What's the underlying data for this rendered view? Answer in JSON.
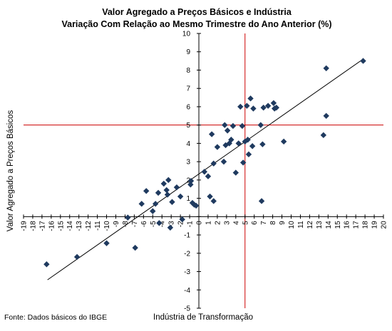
{
  "chart_data": {
    "type": "scatter",
    "title": "Valor Agregado a Preços Básicos e Indústria",
    "subtitle": "Variação Com Relação ao Mesmo Trimestre do Ano Anterior (%)",
    "xlabel": "Indústria de Transformação",
    "ylabel": "Valor Agregado a Preços Básicos",
    "xlim": [
      -19,
      20
    ],
    "ylim": [
      -5,
      10
    ],
    "x_ticks": [
      -19,
      -18,
      -17,
      -16,
      -15,
      -14,
      -13,
      -12,
      -11,
      -10,
      -9,
      -8,
      -7,
      -6,
      -5,
      -4,
      -3,
      -2,
      -1,
      0,
      1,
      2,
      3,
      4,
      5,
      6,
      7,
      8,
      9,
      10,
      11,
      12,
      13,
      14,
      15,
      16,
      17,
      18,
      19,
      20
    ],
    "y_ticks": [
      -5,
      -4,
      -3,
      -2,
      -1,
      0,
      1,
      2,
      3,
      4,
      5,
      6,
      7,
      8,
      9,
      10
    ],
    "grid": false,
    "legend": "none",
    "marker_color": "#1f3a5f",
    "trendline": {
      "x": [
        -16.4,
        17.8
      ],
      "y": [
        -3.45,
        8.6
      ],
      "color": "#000000"
    },
    "reference_lines": {
      "x": 5,
      "y": 5,
      "color": "#cc0000"
    },
    "points": [
      {
        "x": -16.5,
        "y": -2.6
      },
      {
        "x": -13.2,
        "y": -2.2
      },
      {
        "x": -10.0,
        "y": -1.45
      },
      {
        "x": -6.9,
        "y": -1.7
      },
      {
        "x": -7.7,
        "y": -0.05
      },
      {
        "x": -6.2,
        "y": 0.7
      },
      {
        "x": -5.7,
        "y": 1.4
      },
      {
        "x": -5.0,
        "y": 0.3
      },
      {
        "x": -4.7,
        "y": 0.7
      },
      {
        "x": -4.4,
        "y": 1.3
      },
      {
        "x": -4.3,
        "y": -0.35
      },
      {
        "x": -3.8,
        "y": 1.8
      },
      {
        "x": -3.5,
        "y": 1.45
      },
      {
        "x": -3.4,
        "y": 1.2
      },
      {
        "x": -3.3,
        "y": 2.0
      },
      {
        "x": -3.1,
        "y": -0.6
      },
      {
        "x": -2.9,
        "y": 0.8
      },
      {
        "x": -2.4,
        "y": 1.6
      },
      {
        "x": -2.0,
        "y": 1.1
      },
      {
        "x": -1.8,
        "y": -0.15
      },
      {
        "x": -0.9,
        "y": 1.75
      },
      {
        "x": -0.85,
        "y": 1.95
      },
      {
        "x": -0.7,
        "y": 0.75
      },
      {
        "x": -0.5,
        "y": 0.65
      },
      {
        "x": -0.3,
        "y": 0.6
      },
      {
        "x": 0.6,
        "y": 2.45
      },
      {
        "x": 1.0,
        "y": 2.2
      },
      {
        "x": 1.2,
        "y": 1.1
      },
      {
        "x": 1.4,
        "y": 4.5
      },
      {
        "x": 1.6,
        "y": 0.85
      },
      {
        "x": 1.6,
        "y": 2.9
      },
      {
        "x": 2.0,
        "y": 3.8
      },
      {
        "x": 2.7,
        "y": 3.0
      },
      {
        "x": 2.8,
        "y": 5.0
      },
      {
        "x": 2.9,
        "y": 3.9
      },
      {
        "x": 3.1,
        "y": 4.7
      },
      {
        "x": 3.3,
        "y": 4.0
      },
      {
        "x": 3.5,
        "y": 4.2
      },
      {
        "x": 3.7,
        "y": 4.95
      },
      {
        "x": 4.0,
        "y": 2.4
      },
      {
        "x": 4.3,
        "y": 4.0
      },
      {
        "x": 4.5,
        "y": 6.0
      },
      {
        "x": 4.7,
        "y": 4.95
      },
      {
        "x": 4.8,
        "y": 2.95
      },
      {
        "x": 5.0,
        "y": 4.1
      },
      {
        "x": 5.2,
        "y": 6.05
      },
      {
        "x": 5.3,
        "y": 4.2
      },
      {
        "x": 5.4,
        "y": 3.4
      },
      {
        "x": 5.6,
        "y": 6.45
      },
      {
        "x": 5.8,
        "y": 3.85
      },
      {
        "x": 5.9,
        "y": 5.9
      },
      {
        "x": 6.7,
        "y": 5.0
      },
      {
        "x": 6.8,
        "y": 0.85
      },
      {
        "x": 6.9,
        "y": 3.95
      },
      {
        "x": 7.0,
        "y": 5.95
      },
      {
        "x": 7.5,
        "y": 6.05
      },
      {
        "x": 8.1,
        "y": 6.2
      },
      {
        "x": 8.2,
        "y": 5.9
      },
      {
        "x": 8.4,
        "y": 5.95
      },
      {
        "x": 9.2,
        "y": 4.1
      },
      {
        "x": 13.5,
        "y": 4.45
      },
      {
        "x": 13.8,
        "y": 5.5
      },
      {
        "x": 13.8,
        "y": 8.1
      },
      {
        "x": 17.8,
        "y": 8.5
      }
    ]
  },
  "footer": {
    "source": "Fonte: Dados básicos do IBGE"
  }
}
